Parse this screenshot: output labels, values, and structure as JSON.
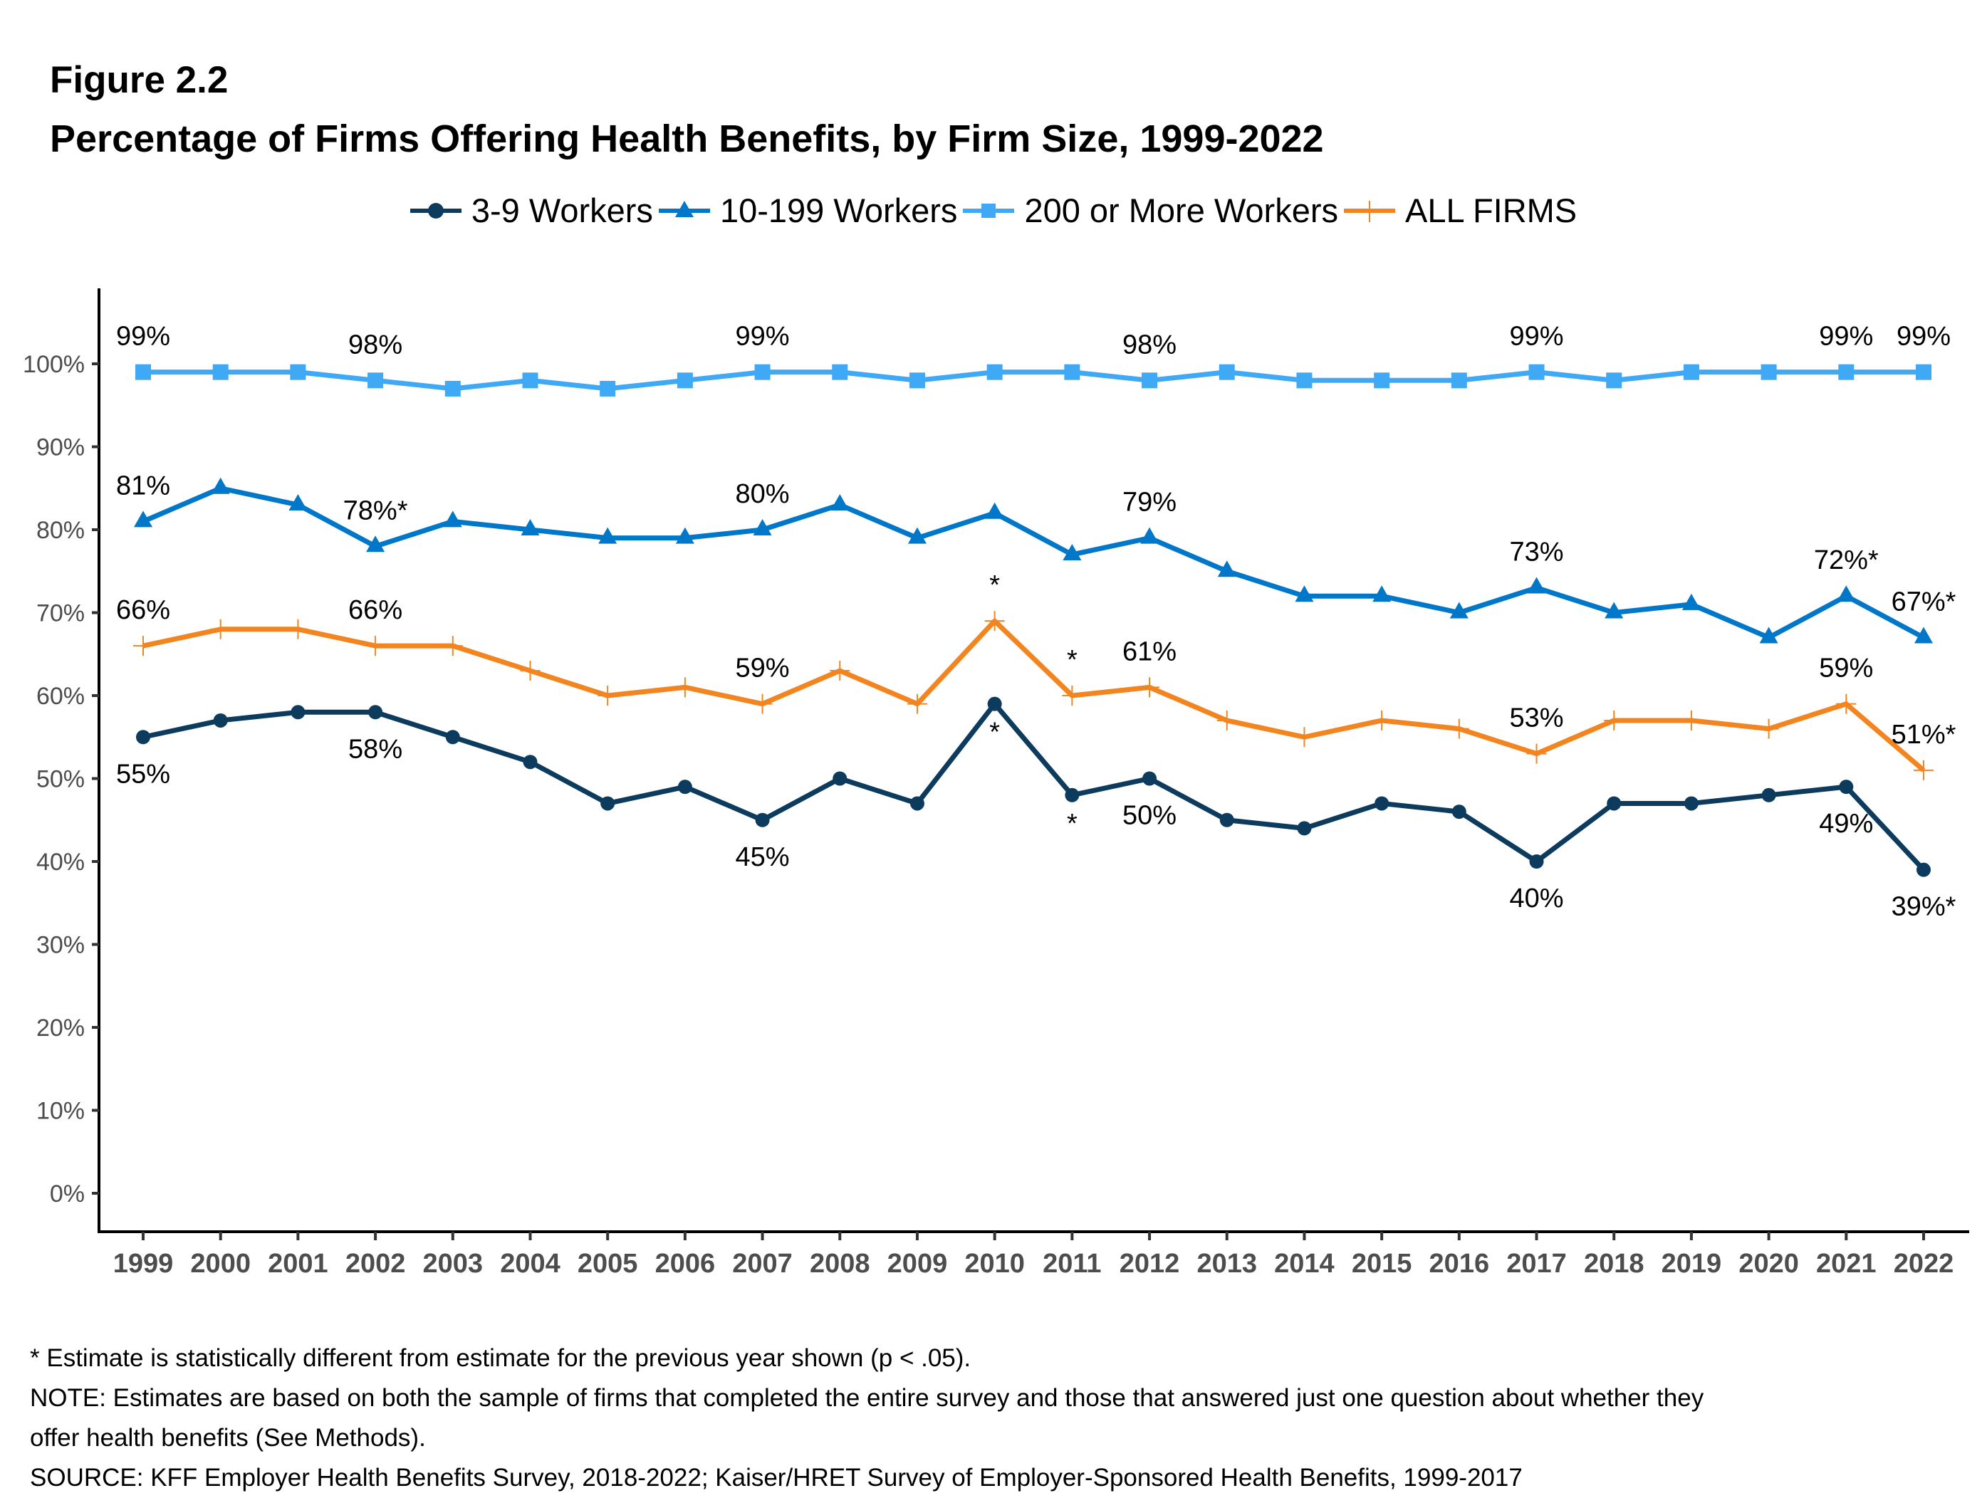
{
  "figure_label": "Figure 2.2",
  "chart_data": {
    "type": "line",
    "title": "Percentage of Firms Offering Health Benefits, by Firm Size, 1999-2022",
    "xlabel": "",
    "ylabel": "",
    "ylim": [
      0,
      100
    ],
    "grid": false,
    "legend_position": "top-center",
    "x": [
      "1999",
      "2000",
      "2001",
      "2002",
      "2003",
      "2004",
      "2005",
      "2006",
      "2007",
      "2008",
      "2009",
      "2010",
      "2011",
      "2012",
      "2013",
      "2014",
      "2015",
      "2016",
      "2017",
      "2018",
      "2019",
      "2020",
      "2021",
      "2022"
    ],
    "yticks": [
      "0%",
      "10%",
      "20%",
      "30%",
      "40%",
      "50%",
      "60%",
      "70%",
      "80%",
      "90%",
      "100%"
    ],
    "series": [
      {
        "name": "3-9 Workers",
        "color": "#0c3b5e",
        "marker": "circle",
        "values": [
          55,
          57,
          58,
          58,
          55,
          52,
          47,
          49,
          45,
          50,
          47,
          59,
          48,
          50,
          45,
          44,
          47,
          46,
          40,
          47,
          47,
          48,
          49,
          39
        ],
        "labels": [
          {
            "x": "1999",
            "text": "55%",
            "pos": "below"
          },
          {
            "x": "2002",
            "text": "58%",
            "pos": "below"
          },
          {
            "x": "2007",
            "text": "45%",
            "pos": "below"
          },
          {
            "x": "2010",
            "text": "*",
            "pos": "below"
          },
          {
            "x": "2011",
            "text": "*",
            "pos": "below"
          },
          {
            "x": "2012",
            "text": "50%",
            "pos": "below"
          },
          {
            "x": "2017",
            "text": "40%",
            "pos": "below"
          },
          {
            "x": "2021",
            "text": "49%",
            "pos": "below"
          },
          {
            "x": "2022",
            "text": "39%*",
            "pos": "below"
          }
        ]
      },
      {
        "name": "10-199 Workers",
        "color": "#0077c8",
        "marker": "triangle",
        "values": [
          81,
          85,
          83,
          78,
          81,
          80,
          79,
          79,
          80,
          83,
          79,
          82,
          77,
          79,
          75,
          72,
          72,
          70,
          73,
          70,
          71,
          67,
          72,
          67
        ],
        "labels": [
          {
            "x": "1999",
            "text": "81%",
            "pos": "above"
          },
          {
            "x": "2002",
            "text": "78%*",
            "pos": "above"
          },
          {
            "x": "2007",
            "text": "80%",
            "pos": "above"
          },
          {
            "x": "2012",
            "text": "79%",
            "pos": "above"
          },
          {
            "x": "2017",
            "text": "73%",
            "pos": "above"
          },
          {
            "x": "2021",
            "text": "72%*",
            "pos": "above"
          },
          {
            "x": "2022",
            "text": "67%*",
            "pos": "above"
          }
        ]
      },
      {
        "name": "200 or More Workers",
        "color": "#3fa9f5",
        "marker": "square",
        "values": [
          99,
          99,
          99,
          98,
          97,
          98,
          97,
          98,
          99,
          99,
          98,
          99,
          99,
          98,
          99,
          98,
          98,
          98,
          99,
          98,
          99,
          99,
          99,
          99
        ],
        "labels": [
          {
            "x": "1999",
            "text": "99%",
            "pos": "above"
          },
          {
            "x": "2002",
            "text": "98%",
            "pos": "above"
          },
          {
            "x": "2007",
            "text": "99%",
            "pos": "above"
          },
          {
            "x": "2012",
            "text": "98%",
            "pos": "above"
          },
          {
            "x": "2017",
            "text": "99%",
            "pos": "above"
          },
          {
            "x": "2021",
            "text": "99%",
            "pos": "above"
          },
          {
            "x": "2022",
            "text": "99%",
            "pos": "above"
          }
        ]
      },
      {
        "name": "ALL FIRMS",
        "color": "#f28520",
        "marker": "plus",
        "values": [
          66,
          68,
          68,
          66,
          66,
          63,
          60,
          61,
          59,
          63,
          59,
          69,
          60,
          61,
          57,
          55,
          57,
          56,
          53,
          57,
          57,
          56,
          59,
          51
        ],
        "labels": [
          {
            "x": "1999",
            "text": "66%",
            "pos": "above"
          },
          {
            "x": "2002",
            "text": "66%",
            "pos": "above"
          },
          {
            "x": "2007",
            "text": "59%",
            "pos": "above"
          },
          {
            "x": "2010",
            "text": "*",
            "pos": "above"
          },
          {
            "x": "2011",
            "text": "*",
            "pos": "above"
          },
          {
            "x": "2012",
            "text": "61%",
            "pos": "above"
          },
          {
            "x": "2017",
            "text": "53%",
            "pos": "above"
          },
          {
            "x": "2021",
            "text": "59%",
            "pos": "above"
          },
          {
            "x": "2022",
            "text": "51%*",
            "pos": "above"
          }
        ]
      }
    ]
  },
  "footnotes": [
    "* Estimate is statistically different from estimate for the previous year shown (p < .05).",
    "NOTE: Estimates are based on both the sample of firms that completed the entire survey and those that answered just one question about whether they",
    "offer health benefits (See Methods).",
    "SOURCE: KFF Employer Health Benefits Survey, 2018-2022; Kaiser/HRET Survey of Employer-Sponsored Health Benefits, 1999-2017"
  ]
}
